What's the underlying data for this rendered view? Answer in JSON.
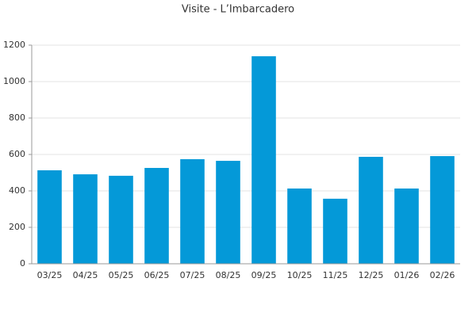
{
  "chart_data": {
    "type": "bar",
    "title": "Visite - L’Imbarcadero",
    "categories": [
      "03/25",
      "04/25",
      "05/25",
      "06/25",
      "07/25",
      "08/25",
      "09/25",
      "10/25",
      "11/25",
      "12/25",
      "01/26",
      "02/26"
    ],
    "values": [
      513,
      491,
      483,
      526,
      574,
      565,
      1139,
      413,
      357,
      587,
      413,
      591
    ],
    "color": "#0499d8",
    "ylim": [
      0,
      1200
    ],
    "yticks": [
      0,
      200,
      400,
      600,
      800,
      1000,
      1200
    ],
    "grid": true
  }
}
